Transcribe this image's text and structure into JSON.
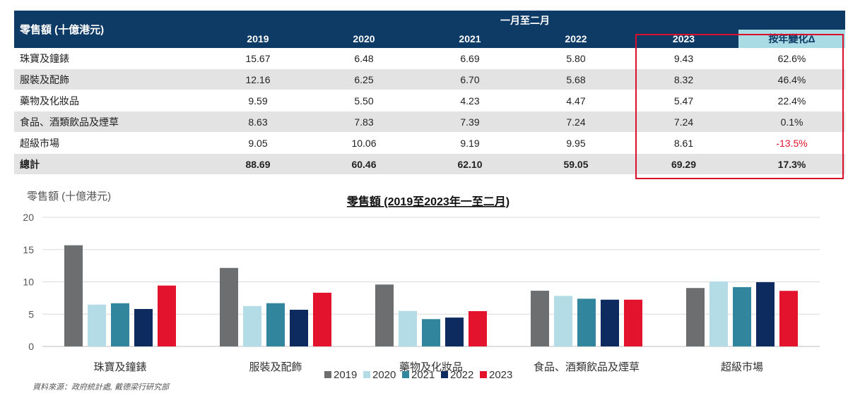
{
  "table": {
    "corner_label": "零售額 (十億港元)",
    "period_label": "一月至二月",
    "years": [
      "2019",
      "2020",
      "2021",
      "2022",
      "2023"
    ],
    "yoy_label": "按年變化Δ",
    "rows": [
      {
        "category": "珠寶及鐘錶",
        "values": [
          "15.67",
          "6.48",
          "6.69",
          "5.80",
          "9.43"
        ],
        "yoy": "62.6%"
      },
      {
        "category": "服裝及配飾",
        "values": [
          "12.16",
          "6.25",
          "6.70",
          "5.68",
          "8.32"
        ],
        "yoy": "46.4%"
      },
      {
        "category": "藥物及化妝品",
        "values": [
          "9.59",
          "5.50",
          "4.23",
          "4.47",
          "5.47"
        ],
        "yoy": "22.4%"
      },
      {
        "category": "食品、酒類飲品及煙草",
        "values": [
          "8.63",
          "7.83",
          "7.39",
          "7.24",
          "7.24"
        ],
        "yoy": "0.1%"
      },
      {
        "category": "超級市場",
        "values": [
          "9.05",
          "10.06",
          "9.19",
          "9.95",
          "8.61"
        ],
        "yoy": "-13.5%"
      }
    ],
    "total": {
      "category": "總計",
      "values": [
        "88.69",
        "60.46",
        "62.10",
        "59.05",
        "69.29"
      ],
      "yoy": "17.3%"
    }
  },
  "chart_data": {
    "type": "bar",
    "title": "零售額 (2019至2023年一至二月)",
    "ylabel": "零售額 (十億港元)",
    "ylim": [
      0,
      20
    ],
    "yticks": [
      "0",
      "5",
      "10",
      "15",
      "20"
    ],
    "categories": [
      "珠寶及鐘錶",
      "服裝及配飾",
      "藥物及化妝品",
      "食品、酒類飲品及煙草",
      "超級市場"
    ],
    "series": [
      {
        "name": "2019",
        "color": "#6d6e70",
        "values": [
          15.67,
          12.16,
          9.59,
          8.63,
          9.05
        ]
      },
      {
        "name": "2020",
        "color": "#b3dce6",
        "values": [
          6.48,
          6.25,
          5.5,
          7.83,
          10.06
        ]
      },
      {
        "name": "2021",
        "color": "#31859c",
        "values": [
          6.69,
          6.7,
          4.23,
          7.39,
          9.19
        ]
      },
      {
        "name": "2022",
        "color": "#0d2b5e",
        "values": [
          5.8,
          5.68,
          4.47,
          7.24,
          9.95
        ]
      },
      {
        "name": "2023",
        "color": "#e3122d",
        "values": [
          9.43,
          8.32,
          5.47,
          7.24,
          8.61
        ]
      }
    ],
    "grid": true,
    "legend_position": "bottom"
  },
  "source": "資料來源：政府統計處, 戴德梁行研究部",
  "colors": {
    "header_bg": "#0e3a66",
    "yoy_header_bg": "#a8dbe4",
    "highlight_border": "#d8102c",
    "negative": "#e3122d"
  }
}
